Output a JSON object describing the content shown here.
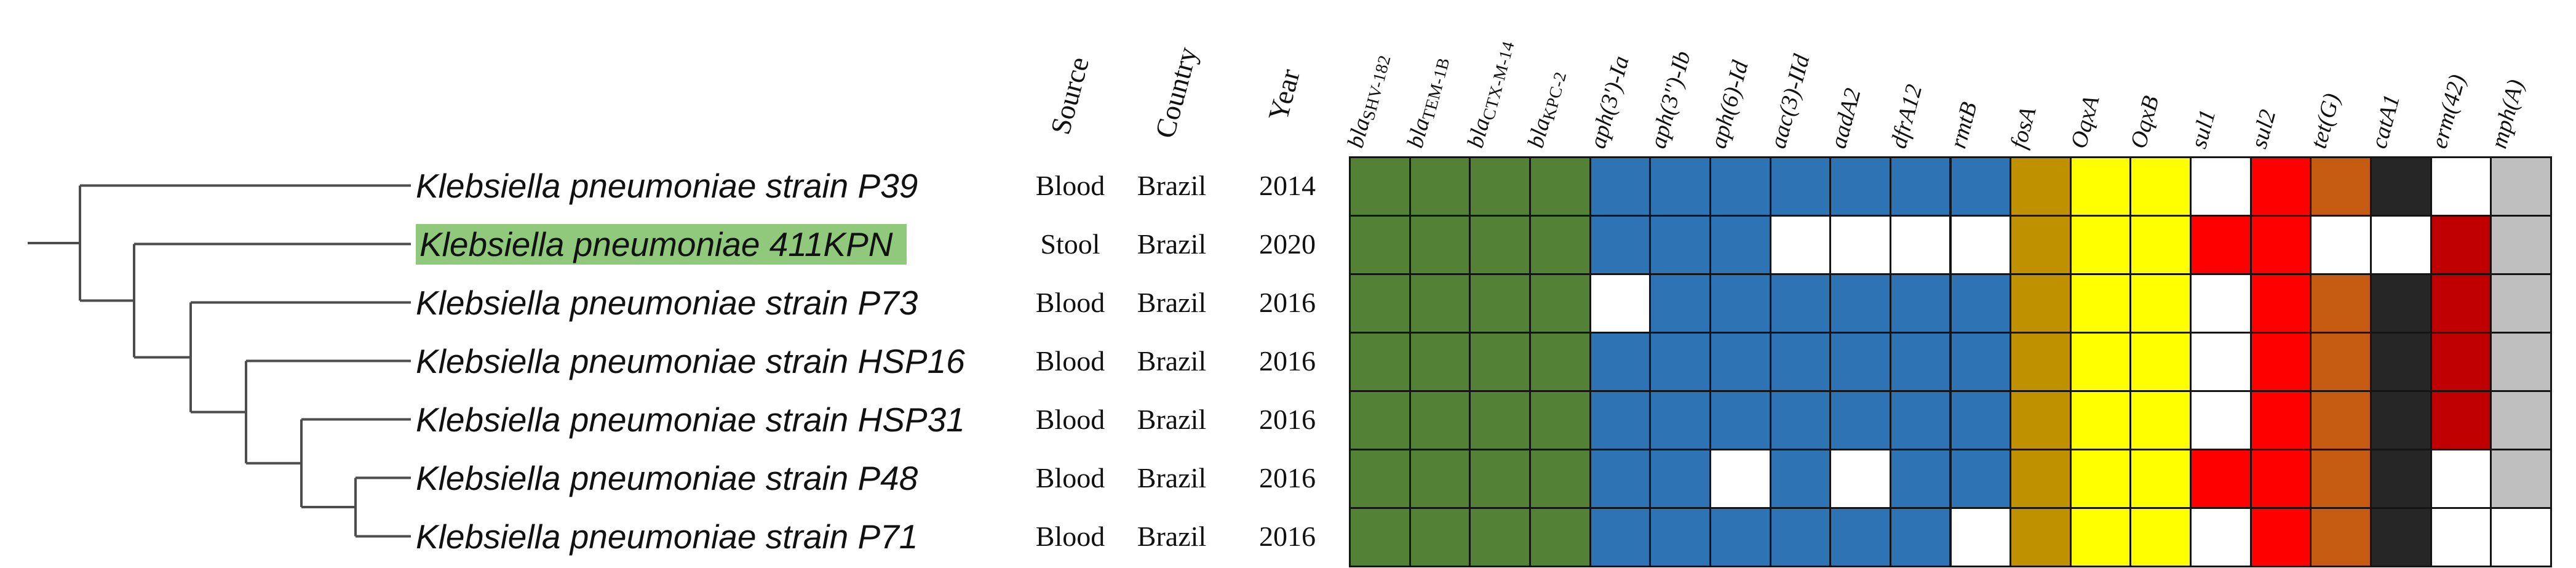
{
  "figure": {
    "description": "Phylogenetic tree of Klebsiella pneumoniae strains with metadata and antimicrobial resistance gene presence/absence matrix",
    "tree_style": "rectangular-ladder"
  },
  "colors": {
    "highlight": "#90C87C",
    "absent": "#FFFFFF",
    "grid_line": "#141414",
    "tree_line": "#4D4D4D",
    "beta_lactam_green": "#538135",
    "aminoglycoside_blue": "#2E74B5",
    "fosfomycin_dark_yellow": "#BF9000",
    "efflux_yellow": "#FFFF00",
    "sulfonamide_red": "#FF0000",
    "tetracycline_orange": "#C55A11",
    "phenicol_black": "#262626",
    "macrolide_dark_red": "#C00000",
    "macrolide_gray": "#BFBFBF"
  },
  "meta_headers": [
    {
      "label": "Source"
    },
    {
      "label": "Country"
    },
    {
      "label": "Year"
    }
  ],
  "genes": [
    {
      "label": "blaSHV-182",
      "main": "bla",
      "sub": "SHV-182",
      "color": "#538135"
    },
    {
      "label": "blaTEM-1B",
      "main": "bla",
      "sub": "TEM-1B",
      "color": "#538135"
    },
    {
      "label": "blaCTX-M-14",
      "main": "bla",
      "sub": "CTX-M-14",
      "color": "#538135"
    },
    {
      "label": "blaKPC-2",
      "main": "bla",
      "sub": "KPC-2",
      "color": "#538135"
    },
    {
      "label": "aph(3')-Ia",
      "main": "aph(3')-Ia",
      "sub": "",
      "color": "#2E74B5"
    },
    {
      "label": "aph(3'')-Ib",
      "main": "aph(3'')-Ib",
      "sub": "",
      "color": "#2E74B5"
    },
    {
      "label": "aph(6)-Id",
      "main": "aph(6)-Id",
      "sub": "",
      "color": "#2E74B5"
    },
    {
      "label": "aac(3)-IId",
      "main": "aac(3)-IId",
      "sub": "",
      "color": "#2E74B5"
    },
    {
      "label": "aadA2",
      "main": "aadA2",
      "sub": "",
      "color": "#2E74B5"
    },
    {
      "label": "dfrA12",
      "main": "dfrA12",
      "sub": "",
      "color": "#2E74B5"
    },
    {
      "label": "rmtB",
      "main": "rmtB",
      "sub": "",
      "color": "#2E74B5"
    },
    {
      "label": "fosA",
      "main": "fosA",
      "sub": "",
      "color": "#BF9000"
    },
    {
      "label": "OqxA",
      "main": "OqxA",
      "sub": "",
      "color": "#FFFF00"
    },
    {
      "label": "OqxB",
      "main": "OqxB",
      "sub": "",
      "color": "#FFFF00"
    },
    {
      "label": "sul1",
      "main": "sul1",
      "sub": "",
      "color": "#FF0000"
    },
    {
      "label": "sul2",
      "main": "sul2",
      "sub": "",
      "color": "#FF0000"
    },
    {
      "label": "tet(G)",
      "main": "tet(G)",
      "sub": "",
      "color": "#C55A11"
    },
    {
      "label": "catA1",
      "main": "catA1",
      "sub": "",
      "color": "#262626"
    },
    {
      "label": "erm(42)",
      "main": "erm(42)",
      "sub": "",
      "color": "#C00000"
    },
    {
      "label": "mph(A)",
      "main": "mph(A)",
      "sub": "",
      "color": "#BFBFBF"
    }
  ],
  "strains": [
    {
      "label": "Klebsiella pneumoniae strain P39",
      "highlighted": false,
      "source": "Blood",
      "country": "Brazil",
      "year": "2014",
      "presence": [
        1,
        1,
        1,
        1,
        1,
        1,
        1,
        1,
        1,
        1,
        1,
        1,
        1,
        1,
        0,
        1,
        1,
        1,
        0,
        1
      ]
    },
    {
      "label": "Klebsiella pneumoniae 411KPN",
      "highlighted": true,
      "source": "Stool",
      "country": "Brazil",
      "year": "2020",
      "presence": [
        1,
        1,
        1,
        1,
        1,
        1,
        1,
        0,
        0,
        0,
        0,
        1,
        1,
        1,
        1,
        1,
        0,
        0,
        1,
        1
      ]
    },
    {
      "label": "Klebsiella pneumoniae strain P73",
      "highlighted": false,
      "source": "Blood",
      "country": "Brazil",
      "year": "2016",
      "presence": [
        1,
        1,
        1,
        1,
        0,
        1,
        1,
        1,
        1,
        1,
        1,
        1,
        1,
        1,
        0,
        1,
        1,
        1,
        1,
        1
      ]
    },
    {
      "label": "Klebsiella pneumoniae strain HSP16",
      "highlighted": false,
      "source": "Blood",
      "country": "Brazil",
      "year": "2016",
      "presence": [
        1,
        1,
        1,
        1,
        1,
        1,
        1,
        1,
        1,
        1,
        1,
        1,
        1,
        1,
        0,
        1,
        1,
        1,
        1,
        1
      ]
    },
    {
      "label": "Klebsiella pneumoniae strain HSP31",
      "highlighted": false,
      "source": "Blood",
      "country": "Brazil",
      "year": "2016",
      "presence": [
        1,
        1,
        1,
        1,
        1,
        1,
        1,
        1,
        1,
        1,
        1,
        1,
        1,
        1,
        0,
        1,
        1,
        1,
        1,
        1
      ]
    },
    {
      "label": "Klebsiella pneumoniae strain P48",
      "highlighted": false,
      "source": "Blood",
      "country": "Brazil",
      "year": "2016",
      "presence": [
        1,
        1,
        1,
        1,
        1,
        1,
        0,
        1,
        0,
        1,
        1,
        1,
        1,
        1,
        1,
        1,
        1,
        1,
        0,
        1
      ]
    },
    {
      "label": "Klebsiella pneumoniae strain P71",
      "highlighted": false,
      "source": "Blood",
      "country": "Brazil",
      "year": "2016",
      "presence": [
        1,
        1,
        1,
        1,
        1,
        1,
        1,
        1,
        1,
        1,
        0,
        1,
        1,
        1,
        0,
        1,
        1,
        1,
        0,
        0
      ]
    }
  ],
  "chart_data": {
    "type": "heatmap",
    "title": "Antimicrobial resistance gene presence/absence across Klebsiella pneumoniae strains",
    "rows": [
      "Klebsiella pneumoniae strain P39",
      "Klebsiella pneumoniae 411KPN",
      "Klebsiella pneumoniae strain P73",
      "Klebsiella pneumoniae strain HSP16",
      "Klebsiella pneumoniae strain HSP31",
      "Klebsiella pneumoniae strain P48",
      "Klebsiella pneumoniae strain P71"
    ],
    "row_source": [
      "Blood",
      "Stool",
      "Blood",
      "Blood",
      "Blood",
      "Blood",
      "Blood"
    ],
    "row_country": [
      "Brazil",
      "Brazil",
      "Brazil",
      "Brazil",
      "Brazil",
      "Brazil",
      "Brazil"
    ],
    "row_year": [
      "2014",
      "2020",
      "2016",
      "2016",
      "2016",
      "2016",
      "2016"
    ],
    "columns": [
      "blaSHV-182",
      "blaTEM-1B",
      "blaCTX-M-14",
      "blaKPC-2",
      "aph(3')-Ia",
      "aph(3'')-Ib",
      "aph(6)-Id",
      "aac(3)-IId",
      "aadA2",
      "dfrA12",
      "rmtB",
      "fosA",
      "OqxA",
      "OqxB",
      "sul1",
      "sul2",
      "tet(G)",
      "catA1",
      "erm(42)",
      "mph(A)"
    ],
    "matrix": [
      [
        1,
        1,
        1,
        1,
        1,
        1,
        1,
        1,
        1,
        1,
        1,
        1,
        1,
        1,
        0,
        1,
        1,
        1,
        0,
        1
      ],
      [
        1,
        1,
        1,
        1,
        1,
        1,
        1,
        0,
        0,
        0,
        0,
        1,
        1,
        1,
        1,
        1,
        0,
        0,
        1,
        1
      ],
      [
        1,
        1,
        1,
        1,
        0,
        1,
        1,
        1,
        1,
        1,
        1,
        1,
        1,
        1,
        0,
        1,
        1,
        1,
        1,
        1
      ],
      [
        1,
        1,
        1,
        1,
        1,
        1,
        1,
        1,
        1,
        1,
        1,
        1,
        1,
        1,
        0,
        1,
        1,
        1,
        1,
        1
      ],
      [
        1,
        1,
        1,
        1,
        1,
        1,
        1,
        1,
        1,
        1,
        1,
        1,
        1,
        1,
        0,
        1,
        1,
        1,
        1,
        1
      ],
      [
        1,
        1,
        1,
        1,
        1,
        1,
        0,
        1,
        0,
        1,
        1,
        1,
        1,
        1,
        1,
        1,
        1,
        1,
        0,
        1
      ],
      [
        1,
        1,
        1,
        1,
        1,
        1,
        1,
        1,
        1,
        1,
        0,
        1,
        1,
        1,
        0,
        1,
        1,
        1,
        0,
        0
      ]
    ],
    "cell_encoding": "1 = gene present (cell filled with gene-group color), 0 = gene absent (white cell)",
    "legend_position": "none",
    "grid": true,
    "highlighted_row": "Klebsiella pneumoniae 411KPN",
    "tree_topology": "(P39,(411KPN,(P73,(HSP16,(HSP31,(P48,P71))))))"
  }
}
